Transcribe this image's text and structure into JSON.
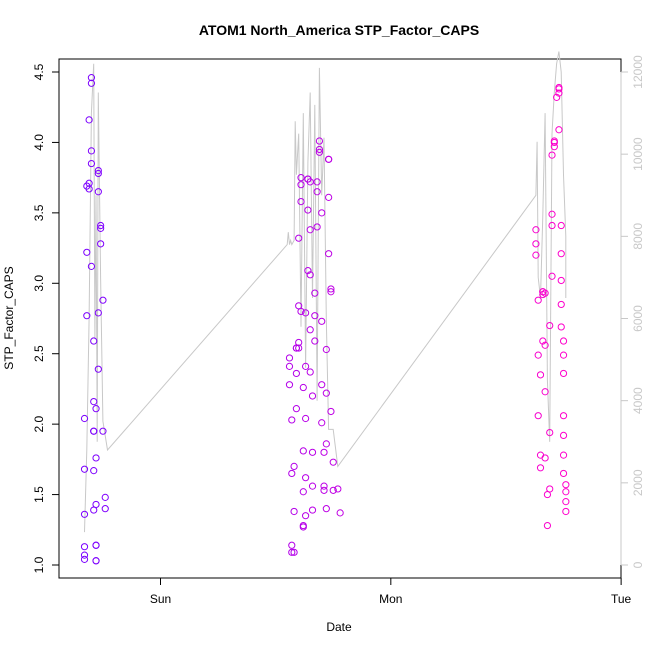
{
  "chart_data": {
    "type": "scatter",
    "title": "ATOM1 North_America STP_Factor_CAPS",
    "xlabel": "Date",
    "ylabel": "STP_Factor_CAPS",
    "ylim": [
      1.0,
      4.5
    ],
    "y_ticks": [
      "1.0",
      "1.5",
      "2.0",
      "2.5",
      "3.0",
      "3.5",
      "4.0",
      "4.5"
    ],
    "x_unit": "days since Sun 00:00",
    "xlim": [
      -0.38,
      1.93
    ],
    "x_ticks": [
      {
        "label": "Sun",
        "x": 0
      },
      {
        "label": "Mon",
        "x": 1
      },
      {
        "label": "Tue",
        "x": 2
      }
    ],
    "y2lim": [
      0,
      12000
    ],
    "y2_ticks": [
      "0",
      "2000",
      "4000",
      "6000",
      "8000",
      "10000",
      "12000"
    ],
    "y2_color": "#c8c8c8",
    "grid": false,
    "legend": "none",
    "points_color_scale": [
      "#7b00ff",
      "#ff00cc"
    ],
    "series": [
      {
        "name": "STP_Factor_CAPS",
        "style": "points",
        "points": [
          [
            -0.33,
            1.04
          ],
          [
            -0.33,
            1.07
          ],
          [
            -0.33,
            1.13
          ],
          [
            -0.33,
            1.36
          ],
          [
            -0.33,
            1.68
          ],
          [
            -0.33,
            2.04
          ],
          [
            -0.32,
            2.77
          ],
          [
            -0.32,
            3.22
          ],
          [
            -0.32,
            3.69
          ],
          [
            -0.31,
            3.71
          ],
          [
            -0.31,
            3.67
          ],
          [
            -0.31,
            4.16
          ],
          [
            -0.3,
            3.85
          ],
          [
            -0.3,
            4.46
          ],
          [
            -0.3,
            4.42
          ],
          [
            -0.3,
            3.94
          ],
          [
            -0.3,
            3.12
          ],
          [
            -0.29,
            2.59
          ],
          [
            -0.29,
            2.16
          ],
          [
            -0.29,
            1.95
          ],
          [
            -0.29,
            1.95
          ],
          [
            -0.29,
            1.67
          ],
          [
            -0.29,
            1.39
          ],
          [
            -0.28,
            1.14
          ],
          [
            -0.28,
            1.03
          ],
          [
            -0.28,
            1.03
          ],
          [
            -0.28,
            1.14
          ],
          [
            -0.28,
            1.43
          ],
          [
            -0.28,
            1.76
          ],
          [
            -0.28,
            2.11
          ],
          [
            -0.27,
            2.39
          ],
          [
            -0.27,
            2.79
          ],
          [
            -0.27,
            3.65
          ],
          [
            -0.27,
            3.8
          ],
          [
            -0.27,
            3.78
          ],
          [
            -0.26,
            3.41
          ],
          [
            -0.26,
            3.39
          ],
          [
            -0.26,
            3.28
          ],
          [
            -0.25,
            2.88
          ],
          [
            -0.25,
            1.95
          ],
          [
            -0.24,
            1.48
          ],
          [
            -0.24,
            1.4
          ],
          [
            0.56,
            2.28
          ],
          [
            0.56,
            2.41
          ],
          [
            0.56,
            2.47
          ],
          [
            0.57,
            2.03
          ],
          [
            0.57,
            1.65
          ],
          [
            0.57,
            1.14
          ],
          [
            0.57,
            1.09
          ],
          [
            0.58,
            1.09
          ],
          [
            0.58,
            1.38
          ],
          [
            0.58,
            1.7
          ],
          [
            0.59,
            2.11
          ],
          [
            0.59,
            2.36
          ],
          [
            0.59,
            2.54
          ],
          [
            0.59,
            2.54
          ],
          [
            0.6,
            2.54
          ],
          [
            0.6,
            2.58
          ],
          [
            0.6,
            2.84
          ],
          [
            0.6,
            3.32
          ],
          [
            0.61,
            3.7
          ],
          [
            0.61,
            3.75
          ],
          [
            0.61,
            3.58
          ],
          [
            0.61,
            2.8
          ],
          [
            0.62,
            2.26
          ],
          [
            0.62,
            1.81
          ],
          [
            0.62,
            1.52
          ],
          [
            0.62,
            1.27
          ],
          [
            0.62,
            1.28
          ],
          [
            0.63,
            1.35
          ],
          [
            0.63,
            1.62
          ],
          [
            0.63,
            2.04
          ],
          [
            0.63,
            2.41
          ],
          [
            0.63,
            2.79
          ],
          [
            0.64,
            3.09
          ],
          [
            0.64,
            3.52
          ],
          [
            0.64,
            3.74
          ],
          [
            0.64,
            3.74
          ],
          [
            0.65,
            3.72
          ],
          [
            0.65,
            3.38
          ],
          [
            0.65,
            3.06
          ],
          [
            0.65,
            2.67
          ],
          [
            0.65,
            2.37
          ],
          [
            0.66,
            1.8
          ],
          [
            0.66,
            1.56
          ],
          [
            0.66,
            1.39
          ],
          [
            0.66,
            2.2
          ],
          [
            0.67,
            2.59
          ],
          [
            0.67,
            2.77
          ],
          [
            0.67,
            2.93
          ],
          [
            0.68,
            3.4
          ],
          [
            0.68,
            3.65
          ],
          [
            0.68,
            3.72
          ],
          [
            0.69,
            3.95
          ],
          [
            0.69,
            4.01
          ],
          [
            0.69,
            3.93
          ],
          [
            0.7,
            3.5
          ],
          [
            0.7,
            2.73
          ],
          [
            0.7,
            2.28
          ],
          [
            0.7,
            2.01
          ],
          [
            0.71,
            1.8
          ],
          [
            0.71,
            1.53
          ],
          [
            0.71,
            1.56
          ],
          [
            0.72,
            1.4
          ],
          [
            0.72,
            1.86
          ],
          [
            0.72,
            2.22
          ],
          [
            0.72,
            2.53
          ],
          [
            0.73,
            3.21
          ],
          [
            0.73,
            3.88
          ],
          [
            0.73,
            3.88
          ],
          [
            0.73,
            3.61
          ],
          [
            0.74,
            2.96
          ],
          [
            0.74,
            2.94
          ],
          [
            0.74,
            2.09
          ],
          [
            0.75,
            1.73
          ],
          [
            0.75,
            1.53
          ],
          [
            0.77,
            1.54
          ],
          [
            0.78,
            1.37
          ],
          [
            1.63,
            3.38
          ],
          [
            1.63,
            3.28
          ],
          [
            1.63,
            3.2
          ],
          [
            1.64,
            2.88
          ],
          [
            1.64,
            2.49
          ],
          [
            1.64,
            2.06
          ],
          [
            1.65,
            1.69
          ],
          [
            1.65,
            1.78
          ],
          [
            1.65,
            2.35
          ],
          [
            1.66,
            2.59
          ],
          [
            1.66,
            2.94
          ],
          [
            1.66,
            2.92
          ],
          [
            1.66,
            2.94
          ],
          [
            1.67,
            2.93
          ],
          [
            1.67,
            2.23
          ],
          [
            1.67,
            2.56
          ],
          [
            1.67,
            1.76
          ],
          [
            1.68,
            1.5
          ],
          [
            1.68,
            1.28
          ],
          [
            1.69,
            1.54
          ],
          [
            1.69,
            1.94
          ],
          [
            1.69,
            2.7
          ],
          [
            1.7,
            3.05
          ],
          [
            1.7,
            3.41
          ],
          [
            1.7,
            3.49
          ],
          [
            1.7,
            3.91
          ],
          [
            1.71,
            4.0
          ],
          [
            1.71,
            4.01
          ],
          [
            1.71,
            3.97
          ],
          [
            1.72,
            4.32
          ],
          [
            1.73,
            4.38
          ],
          [
            1.73,
            4.39
          ],
          [
            1.73,
            4.35
          ],
          [
            1.73,
            4.09
          ],
          [
            1.74,
            3.41
          ],
          [
            1.74,
            3.21
          ],
          [
            1.74,
            3.02
          ],
          [
            1.74,
            2.85
          ],
          [
            1.74,
            2.69
          ],
          [
            1.75,
            2.59
          ],
          [
            1.75,
            2.49
          ],
          [
            1.75,
            2.36
          ],
          [
            1.75,
            2.06
          ],
          [
            1.75,
            1.92
          ],
          [
            1.75,
            1.78
          ],
          [
            1.75,
            1.65
          ],
          [
            1.76,
            1.57
          ],
          [
            1.76,
            1.52
          ],
          [
            1.76,
            1.45
          ],
          [
            1.76,
            1.38
          ]
        ]
      },
      {
        "name": "secondary",
        "style": "line",
        "axis": "right",
        "color": "#c8c8c8",
        "points": [
          [
            -0.33,
            800
          ],
          [
            -0.32,
            2800
          ],
          [
            -0.31,
            6000
          ],
          [
            -0.3,
            11000
          ],
          [
            -0.29,
            12200
          ],
          [
            -0.285,
            5500
          ],
          [
            -0.28,
            9000
          ],
          [
            -0.275,
            3000
          ],
          [
            -0.27,
            11500
          ],
          [
            -0.26,
            7000
          ],
          [
            -0.25,
            3500
          ],
          [
            -0.23,
            2800
          ],
          [
            0.55,
            7800
          ],
          [
            0.555,
            8100
          ],
          [
            0.56,
            7800
          ],
          [
            0.565,
            7900
          ],
          [
            0.57,
            7800
          ],
          [
            0.58,
            7900
          ],
          [
            0.585,
            10800
          ],
          [
            0.59,
            9500
          ],
          [
            0.6,
            10500
          ],
          [
            0.61,
            5800
          ],
          [
            0.62,
            11000
          ],
          [
            0.63,
            4800
          ],
          [
            0.64,
            9800
          ],
          [
            0.65,
            11500
          ],
          [
            0.66,
            6500
          ],
          [
            0.67,
            11200
          ],
          [
            0.68,
            4000
          ],
          [
            0.69,
            12100
          ],
          [
            0.7,
            9000
          ],
          [
            0.71,
            10400
          ],
          [
            0.72,
            6000
          ],
          [
            0.73,
            3300
          ],
          [
            0.75,
            3300
          ],
          [
            0.77,
            2400
          ],
          [
            1.63,
            9000
          ],
          [
            1.635,
            10300
          ],
          [
            1.64,
            7000
          ],
          [
            1.65,
            6500
          ],
          [
            1.66,
            8500
          ],
          [
            1.67,
            11000
          ],
          [
            1.68,
            4500
          ],
          [
            1.69,
            3000
          ],
          [
            1.7,
            10500
          ],
          [
            1.71,
            11500
          ],
          [
            1.72,
            12200
          ],
          [
            1.73,
            12500
          ],
          [
            1.74,
            12000
          ],
          [
            1.75,
            9500
          ],
          [
            1.76,
            8000
          ],
          [
            1.76,
            6500
          ]
        ]
      }
    ]
  }
}
